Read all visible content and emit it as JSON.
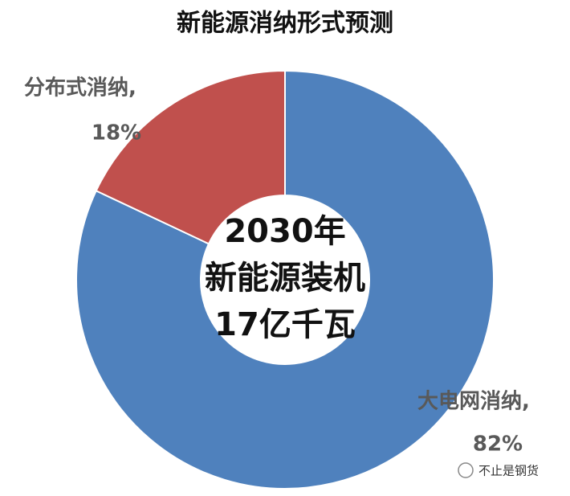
{
  "chart_data": {
    "type": "donut",
    "title": "新能源消纳形式预测",
    "categories": [
      "大电网消纳,",
      "分布式消纳,"
    ],
    "values": [
      82,
      18
    ],
    "value_labels": [
      "82%",
      "18%"
    ],
    "colors": [
      "#4f81bd",
      "#c0504d"
    ],
    "center_text": [
      "2030年",
      "新能源装机",
      "17亿千瓦"
    ]
  },
  "watermark": "不止是钢货"
}
